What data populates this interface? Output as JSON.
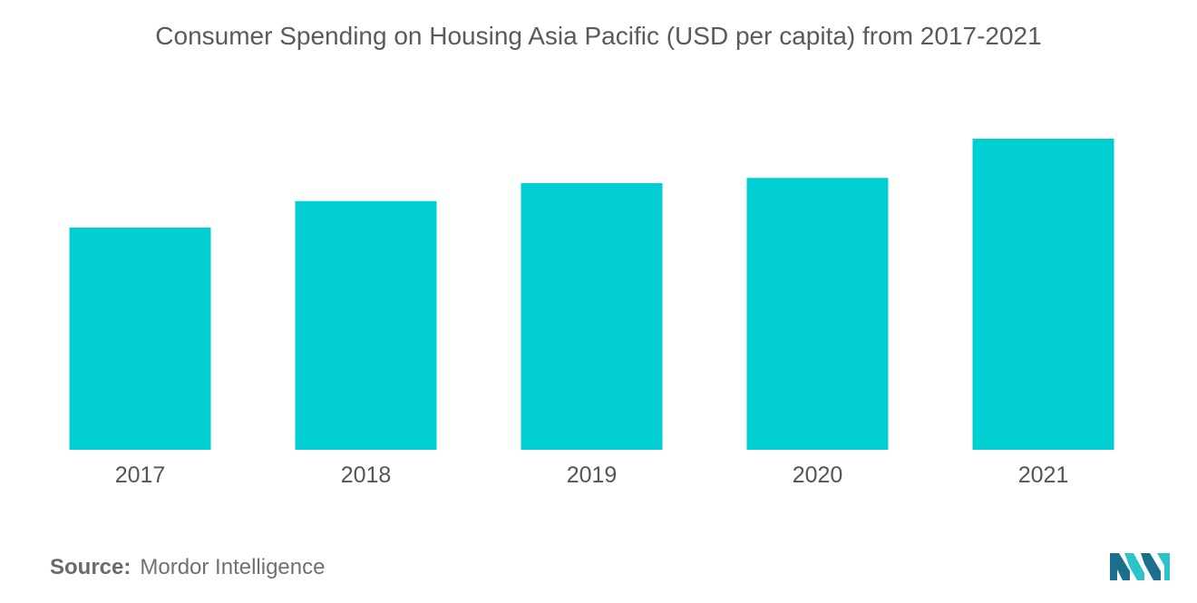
{
  "chart_data": {
    "type": "bar",
    "title": "Consumer Spending on Housing Asia Pacific (USD per capita) from 2017-2021",
    "categories": [
      "2017",
      "2018",
      "2019",
      "2020",
      "2021"
    ],
    "values": [
      210,
      235,
      252,
      257,
      294
    ],
    "ylim": [
      0,
      300
    ],
    "grid": false,
    "bar_color": "#00ced1"
  },
  "footer": {
    "source_label": "Source:",
    "source_text": "Mordor Intelligence"
  },
  "logo": {
    "icon": "mordor-intelligence-logo-icon",
    "colors": [
      "#1b6f8c",
      "#2cc4c8"
    ]
  }
}
